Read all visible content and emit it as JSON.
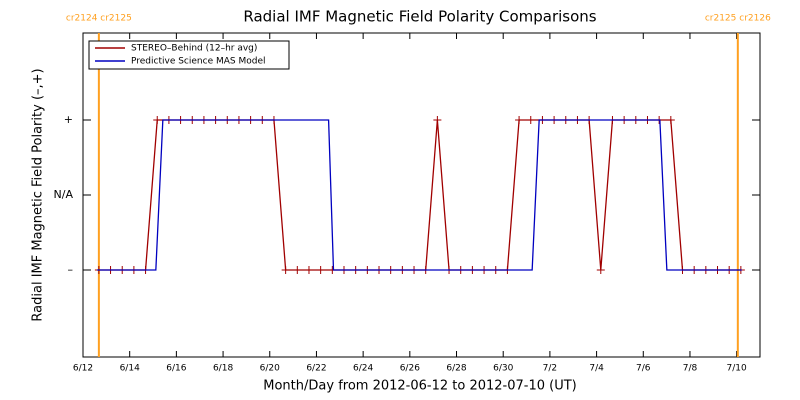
{
  "chart_data": {
    "type": "line",
    "title": "Radial IMF Magnetic Field Polarity Comparisons",
    "xlabel": "Month/Day from 2012-06-12 to 2012-07-10 (UT)",
    "ylabel": "Radial IMF Magnetic Field Polarity (–,+)",
    "xlim": [
      0,
      29
    ],
    "xticks": [
      {
        "value": 0,
        "label": "6/12"
      },
      {
        "value": 2,
        "label": "6/14"
      },
      {
        "value": 4,
        "label": "6/16"
      },
      {
        "value": 6,
        "label": "6/18"
      },
      {
        "value": 8,
        "label": "6/20"
      },
      {
        "value": 10,
        "label": "6/22"
      },
      {
        "value": 12,
        "label": "6/24"
      },
      {
        "value": 14,
        "label": "6/26"
      },
      {
        "value": 16,
        "label": "6/28"
      },
      {
        "value": 18,
        "label": "6/30"
      },
      {
        "value": 20,
        "label": "7/2"
      },
      {
        "value": 22,
        "label": "7/4"
      },
      {
        "value": 24,
        "label": "7/6"
      },
      {
        "value": 26,
        "label": "7/8"
      },
      {
        "value": 28,
        "label": "7/10"
      }
    ],
    "ylim": [
      -2.16,
      2.16
    ],
    "yticks": [
      {
        "value": -1,
        "label": "–"
      },
      {
        "value": 0,
        "label": "N/A"
      },
      {
        "value": 1,
        "label": "+"
      }
    ],
    "legend": "upper left",
    "vlines": [
      {
        "x": 0.68,
        "label": "cr2124 cr2125",
        "color": "#ffa020"
      },
      {
        "x": 28.05,
        "label": "cr2125 cr2126",
        "color": "#ffa020"
      }
    ],
    "series": [
      {
        "name": "STEREO–Behind (12–hr avg)",
        "color": "#a00000",
        "marker": "+",
        "x": [
          0.68,
          1.18,
          1.68,
          2.18,
          2.68,
          3.18,
          3.68,
          4.18,
          4.68,
          5.18,
          5.68,
          6.18,
          6.68,
          7.18,
          7.68,
          8.18,
          8.68,
          9.18,
          9.68,
          10.18,
          10.68,
          11.18,
          11.68,
          12.18,
          12.68,
          13.18,
          13.68,
          14.18,
          14.68,
          15.18,
          15.68,
          16.18,
          16.68,
          17.18,
          17.68,
          18.18,
          18.68,
          19.18,
          19.68,
          20.18,
          20.68,
          21.18,
          21.68,
          22.18,
          22.68,
          23.18,
          23.68,
          24.18,
          24.68,
          25.18,
          25.68,
          26.18,
          26.68,
          27.18,
          27.68,
          28.18
        ],
        "values": [
          -1,
          -1,
          -1,
          -1,
          -1,
          1,
          1,
          1,
          1,
          1,
          1,
          1,
          1,
          1,
          1,
          1,
          -1,
          -1,
          -1,
          -1,
          -1,
          -1,
          -1,
          -1,
          -1,
          -1,
          -1,
          -1,
          -1,
          1,
          -1,
          -1,
          -1,
          -1,
          -1,
          -1,
          1,
          1,
          1,
          1,
          1,
          1,
          1,
          -1,
          1,
          1,
          1,
          1,
          1,
          1,
          -1,
          -1,
          -1,
          -1,
          -1,
          -1
        ]
      },
      {
        "name": "Predictive Science MAS Model",
        "color": "#0000c0",
        "x": [
          0.6,
          3.12,
          3.42,
          10.52,
          10.73,
          19.24,
          19.54,
          24.71,
          25.01,
          28.22
        ],
        "values": [
          -1,
          -1,
          1,
          1,
          -1,
          -1,
          1,
          1,
          -1,
          -1
        ]
      }
    ]
  }
}
